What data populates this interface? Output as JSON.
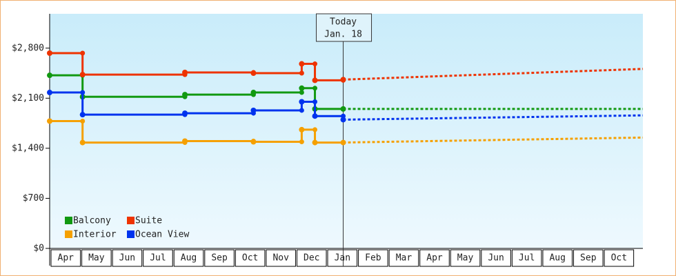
{
  "chart_data": {
    "type": "step-line",
    "categories": [
      "Apr",
      "May",
      "Jun",
      "Jul",
      "Aug",
      "Sep",
      "Oct",
      "Nov",
      "Dec",
      "Jan",
      "Feb",
      "Mar",
      "Apr",
      "May",
      "Jun",
      "Jul",
      "Aug",
      "Sep",
      "Oct"
    ],
    "xlim": [
      0,
      19.3
    ],
    "ylim": [
      0,
      3280
    ],
    "yticks": [
      {
        "value": 0,
        "label": "$0"
      },
      {
        "value": 700,
        "label": "$700"
      },
      {
        "value": 1400,
        "label": "$1,400"
      },
      {
        "value": 2100,
        "label": "$2,100"
      },
      {
        "value": 2800,
        "label": "$2,800"
      }
    ],
    "today": {
      "x": 9.55,
      "label": "Today",
      "date": "Jan. 18"
    },
    "legend": "bottom-left",
    "series": [
      {
        "name": "Balcony",
        "color": "#119911",
        "x": [
          0,
          1.07,
          4.4,
          6.63,
          8.2,
          8.63,
          9.55
        ],
        "values": [
          2420,
          2120,
          2150,
          2180,
          2240,
          1950,
          1950
        ],
        "forecast": {
          "x": [
            9.55,
            19.3
          ],
          "values": [
            1950,
            1950
          ]
        }
      },
      {
        "name": "Suite",
        "color": "#ee3300",
        "x": [
          0,
          1.07,
          4.4,
          6.63,
          8.2,
          8.63,
          9.55
        ],
        "values": [
          2730,
          2430,
          2460,
          2450,
          2580,
          2350,
          2360
        ],
        "forecast": {
          "x": [
            9.55,
            19.3
          ],
          "values": [
            2360,
            2510
          ]
        }
      },
      {
        "name": "Interior",
        "color": "#f5a000",
        "x": [
          0,
          1.07,
          4.4,
          6.63,
          8.2,
          8.63,
          9.55
        ],
        "values": [
          1780,
          1480,
          1500,
          1490,
          1660,
          1480,
          1480
        ],
        "forecast": {
          "x": [
            9.55,
            19.3
          ],
          "values": [
            1480,
            1550
          ]
        }
      },
      {
        "name": "Ocean View",
        "color": "#0033ee",
        "x": [
          0,
          1.07,
          4.4,
          6.63,
          8.2,
          8.63,
          9.55
        ],
        "values": [
          2180,
          1870,
          1890,
          1930,
          2050,
          1850,
          1800
        ],
        "forecast": {
          "x": [
            9.55,
            19.3
          ],
          "values": [
            1800,
            1860
          ]
        }
      }
    ]
  }
}
